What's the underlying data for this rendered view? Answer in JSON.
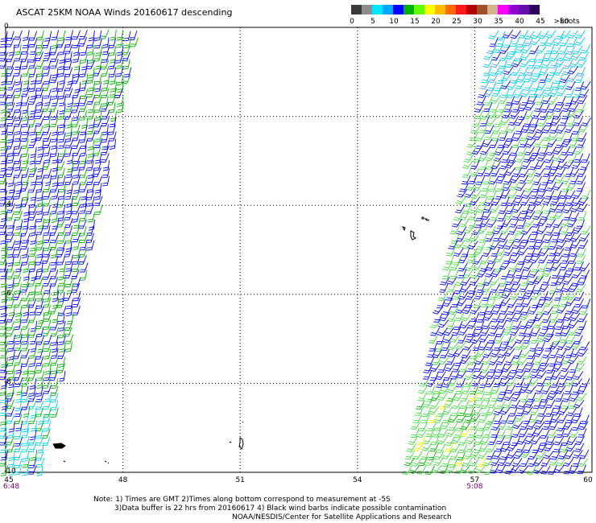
{
  "title": "ASCAT 25KM NOAA Winds 20160617 descending",
  "colorbar": {
    "labels": [
      "0",
      "5",
      "10",
      "15",
      "20",
      "25",
      "30",
      "35",
      "40",
      "45",
      ">50"
    ],
    "units": "knots",
    "colors": [
      "#3a3a3a",
      "#8c8c8c",
      "#00e5ff",
      "#00a8ff",
      "#0000ff",
      "#00b000",
      "#60ff00",
      "#ffff00",
      "#ffbb00",
      "#ff6a00",
      "#ff1a1a",
      "#b00000",
      "#a0522d",
      "#d2b48c",
      "#ff00ff",
      "#9400d3",
      "#6a0dad",
      "#2e0060"
    ]
  },
  "axes": {
    "lat_labels": [
      "0",
      "-2",
      "-4",
      "-6",
      "-8",
      "-10"
    ],
    "lon_labels": [
      "45",
      "48",
      "51",
      "54",
      "57",
      "60"
    ],
    "lat_range": [
      -10,
      0
    ],
    "lon_range": [
      45,
      60
    ],
    "grid": "dotted"
  },
  "times": [
    {
      "label": "6:48",
      "lon": 45
    },
    {
      "label": "5:08",
      "lon": 57
    }
  ],
  "notes": [
    "Note: 1) Times are GMT 2)Times along bottom correspond to measurement at -5S",
    "3)Data buffer is 22 hrs from 20160617 4) Black wind barbs indicate possible contamination",
    "NOAA/NESDIS/Center for Satellite Applications and Research"
  ],
  "swaths": [
    {
      "name": "west",
      "dominant_colors": [
        "#0000ff",
        "#00b000",
        "#00e5ff"
      ]
    },
    {
      "name": "east",
      "dominant_colors": [
        "#0000ff",
        "#00b000",
        "#00e5ff",
        "#ffff00"
      ]
    }
  ],
  "icon": "wind-barb-icon"
}
